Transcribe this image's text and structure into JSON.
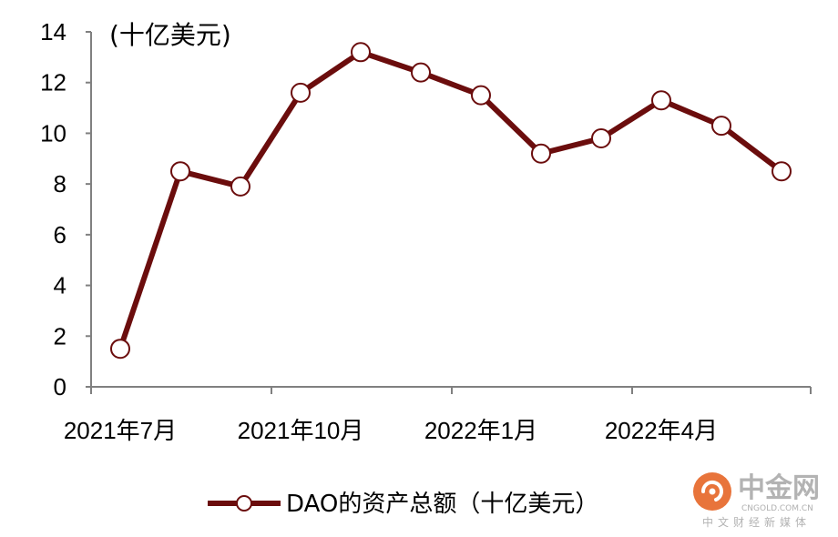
{
  "chart_data": {
    "type": "line",
    "unit_label": "(十亿美元)",
    "x": [
      "2021-07",
      "2021-08",
      "2021-09",
      "2021-10",
      "2021-11",
      "2021-12",
      "2022-01",
      "2022-02",
      "2022-03",
      "2022-04",
      "2022-05",
      "2022-06"
    ],
    "x_tick_labels": [
      "2021年7月",
      "2021年10月",
      "2022年1月",
      "2022年4月"
    ],
    "series": [
      {
        "name": "DAO的资产总额（十亿美元）",
        "values": [
          1.5,
          8.5,
          7.9,
          11.6,
          13.2,
          12.4,
          11.5,
          9.2,
          9.8,
          11.3,
          10.3,
          8.5
        ]
      }
    ],
    "y_ticks": [
      "0",
      "2",
      "4",
      "6",
      "8",
      "10",
      "12",
      "14"
    ],
    "ylim": [
      0,
      14
    ],
    "grid": false,
    "legend_position": "bottom-center",
    "line_color": "#6b0d0d",
    "marker_fill": "#ffffff"
  },
  "watermark": {
    "title": "中金网",
    "url": "CNGOLD.COM.CN",
    "subtitle": "中文财经新媒体",
    "logo_color": "#e8743b"
  }
}
